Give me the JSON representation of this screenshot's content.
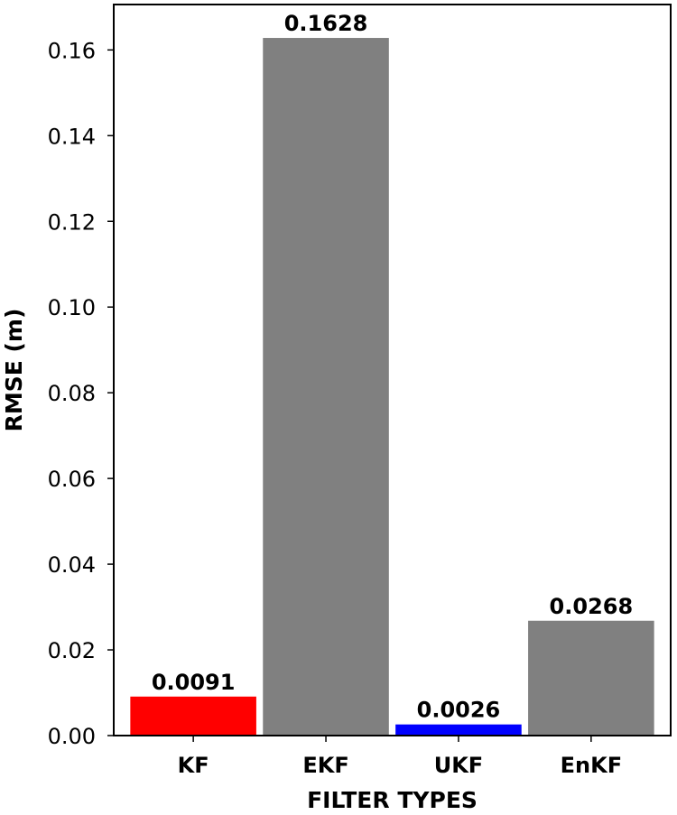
{
  "chart_data": {
    "type": "bar",
    "title": "",
    "xlabel": "FILTER TYPES",
    "ylabel": "RMSE (m)",
    "categories": [
      "KF",
      "EKF",
      "UKF",
      "EnKF"
    ],
    "values": [
      0.0091,
      0.1628,
      0.0026,
      0.0268
    ],
    "value_labels": [
      "0.0091",
      "0.1628",
      "0.0026",
      "0.0268"
    ],
    "colors": [
      "#ff0000",
      "#808080",
      "#0000ff",
      "#808080"
    ],
    "ylim": [
      0,
      0.1706
    ],
    "yticks": [
      0.0,
      0.02,
      0.04,
      0.06,
      0.08,
      0.1,
      0.12,
      0.14,
      0.16
    ],
    "ytick_labels": [
      "0.00",
      "0.02",
      "0.04",
      "0.06",
      "0.08",
      "0.10",
      "0.12",
      "0.14",
      "0.16"
    ],
    "grid": false,
    "legend": "none"
  }
}
